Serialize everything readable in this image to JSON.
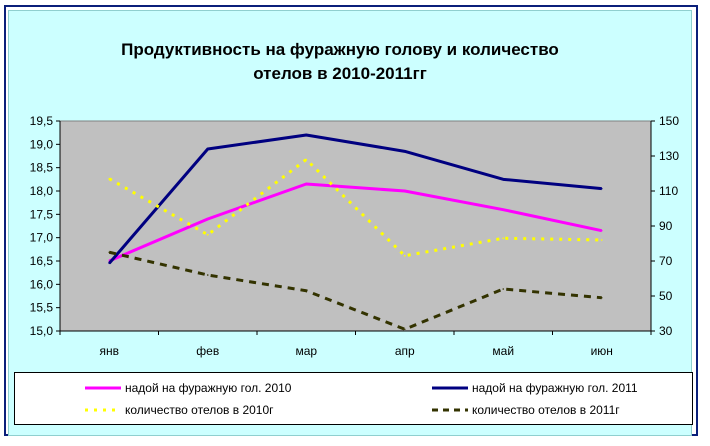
{
  "chart_data": {
    "type": "line",
    "title_line1": "Продуктивность на фуражную голову и количество",
    "title_line2": "отелов в 2010-2011гг",
    "categories": [
      "янв",
      "фев",
      "мар",
      "апр",
      "май",
      "июн"
    ],
    "y_left": {
      "min": 15.0,
      "max": 19.5,
      "step": 0.5,
      "ticks": [
        "15,0",
        "15,5",
        "16,0",
        "16,5",
        "17,0",
        "17,5",
        "18,0",
        "18,5",
        "19,0",
        "19,5"
      ]
    },
    "y_right": {
      "min": 30,
      "max": 150,
      "step": 20,
      "ticks": [
        "30",
        "50",
        "70",
        "90",
        "110",
        "130",
        "150"
      ]
    },
    "grid": false,
    "plot_background": "#c0c0c0",
    "legend_position": "bottom",
    "series": [
      {
        "name": "надой на фуражную гол. 2010",
        "axis": "left",
        "color": "#ff00ff",
        "style": "solid",
        "values": [
          16.5,
          17.4,
          18.15,
          18.0,
          17.6,
          17.15
        ]
      },
      {
        "name": "надой на фуражную гол. 2011",
        "axis": "left",
        "color": "#000080",
        "style": "solid",
        "values": [
          16.45,
          18.9,
          19.2,
          18.85,
          18.25,
          18.05
        ]
      },
      {
        "name": "количество отелов в 2010г",
        "axis": "right",
        "color": "#ffff00",
        "style": "dotted",
        "values": [
          117,
          85,
          128,
          73,
          83,
          82
        ]
      },
      {
        "name": "количество отелов в 2011г",
        "axis": "right",
        "color": "#333300",
        "style": "dashed",
        "values": [
          75,
          62,
          53,
          31,
          54,
          49
        ]
      }
    ]
  }
}
